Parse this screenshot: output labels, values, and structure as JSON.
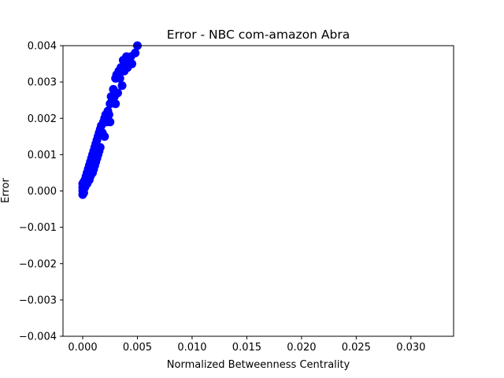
{
  "chart_data": {
    "type": "scatter",
    "title": "Error - NBC com-amazon Abra",
    "xlabel": "Normalized Betweenness Centrality",
    "ylabel": "Error",
    "xlim": [
      -0.0018,
      0.0339
    ],
    "ylim": [
      -0.004,
      0.004
    ],
    "x_ticks": [
      0.0,
      0.005,
      0.01,
      0.015,
      0.02,
      0.025,
      0.03
    ],
    "x_tick_labels": [
      "0.000",
      "0.005",
      "0.010",
      "0.015",
      "0.020",
      "0.025",
      "0.030"
    ],
    "y_ticks": [
      -0.004,
      -0.003,
      -0.002,
      -0.001,
      0.0,
      0.001,
      0.002,
      0.003,
      0.004
    ],
    "y_tick_labels": [
      "−0.004",
      "−0.003",
      "−0.002",
      "−0.001",
      "0.000",
      "0.001",
      "0.002",
      "0.003",
      "0.004"
    ],
    "grid": false,
    "legend": "none",
    "colors": {
      "points": "#0000ff",
      "axes": "#000000",
      "background": "#ffffff"
    },
    "series": [
      {
        "x": [
          0.0,
          0.0,
          0.0,
          0.0,
          0.0001,
          0.0001,
          0.0001,
          0.0002,
          0.0002,
          0.0003,
          0.0003,
          0.0004,
          0.0004,
          0.0005,
          0.0005,
          0.0006,
          0.0006,
          0.0007,
          0.0007,
          0.0008,
          0.0008,
          0.0009,
          0.0009,
          0.001,
          0.001,
          0.0011,
          0.0011,
          0.0012,
          0.0012,
          0.0013,
          0.0013,
          0.0014,
          0.0014,
          0.0015,
          0.0015,
          0.0016,
          0.0016,
          0.0017,
          0.0018,
          0.0019,
          0.002,
          0.002,
          0.0021,
          0.0022,
          0.0023,
          0.0024,
          0.0025,
          0.0025,
          0.0026,
          0.0027,
          0.0028,
          0.0029,
          0.003,
          0.003,
          0.0031,
          0.0032,
          0.0033,
          0.0034,
          0.0035,
          0.0036,
          0.0037,
          0.0038,
          0.004,
          0.0041,
          0.0042,
          0.0044,
          0.0045,
          0.0048,
          0.005
        ],
        "y": [
          -0.0001,
          0.0,
          0.0001,
          0.0002,
          -5e-05,
          0.0001,
          0.00025,
          0.0001,
          0.0003,
          0.0002,
          0.0004,
          0.0002,
          0.0005,
          0.0003,
          0.0006,
          0.0003,
          0.0007,
          0.0004,
          0.0008,
          0.0005,
          0.0009,
          0.0005,
          0.001,
          0.0006,
          0.0011,
          0.0007,
          0.0012,
          0.0008,
          0.0013,
          0.0009,
          0.0014,
          0.001,
          0.0015,
          0.0011,
          0.0016,
          0.0012,
          0.0017,
          0.0018,
          0.0016,
          0.0019,
          0.0015,
          0.002,
          0.0021,
          0.0019,
          0.0022,
          0.0021,
          0.0024,
          0.0019,
          0.0026,
          0.0025,
          0.0028,
          0.0026,
          0.0031,
          0.0024,
          0.0032,
          0.0027,
          0.0033,
          0.0031,
          0.0034,
          0.0029,
          0.0036,
          0.0033,
          0.0037,
          0.0034,
          0.0036,
          0.0037,
          0.0035,
          0.0038,
          0.004
        ]
      }
    ]
  }
}
